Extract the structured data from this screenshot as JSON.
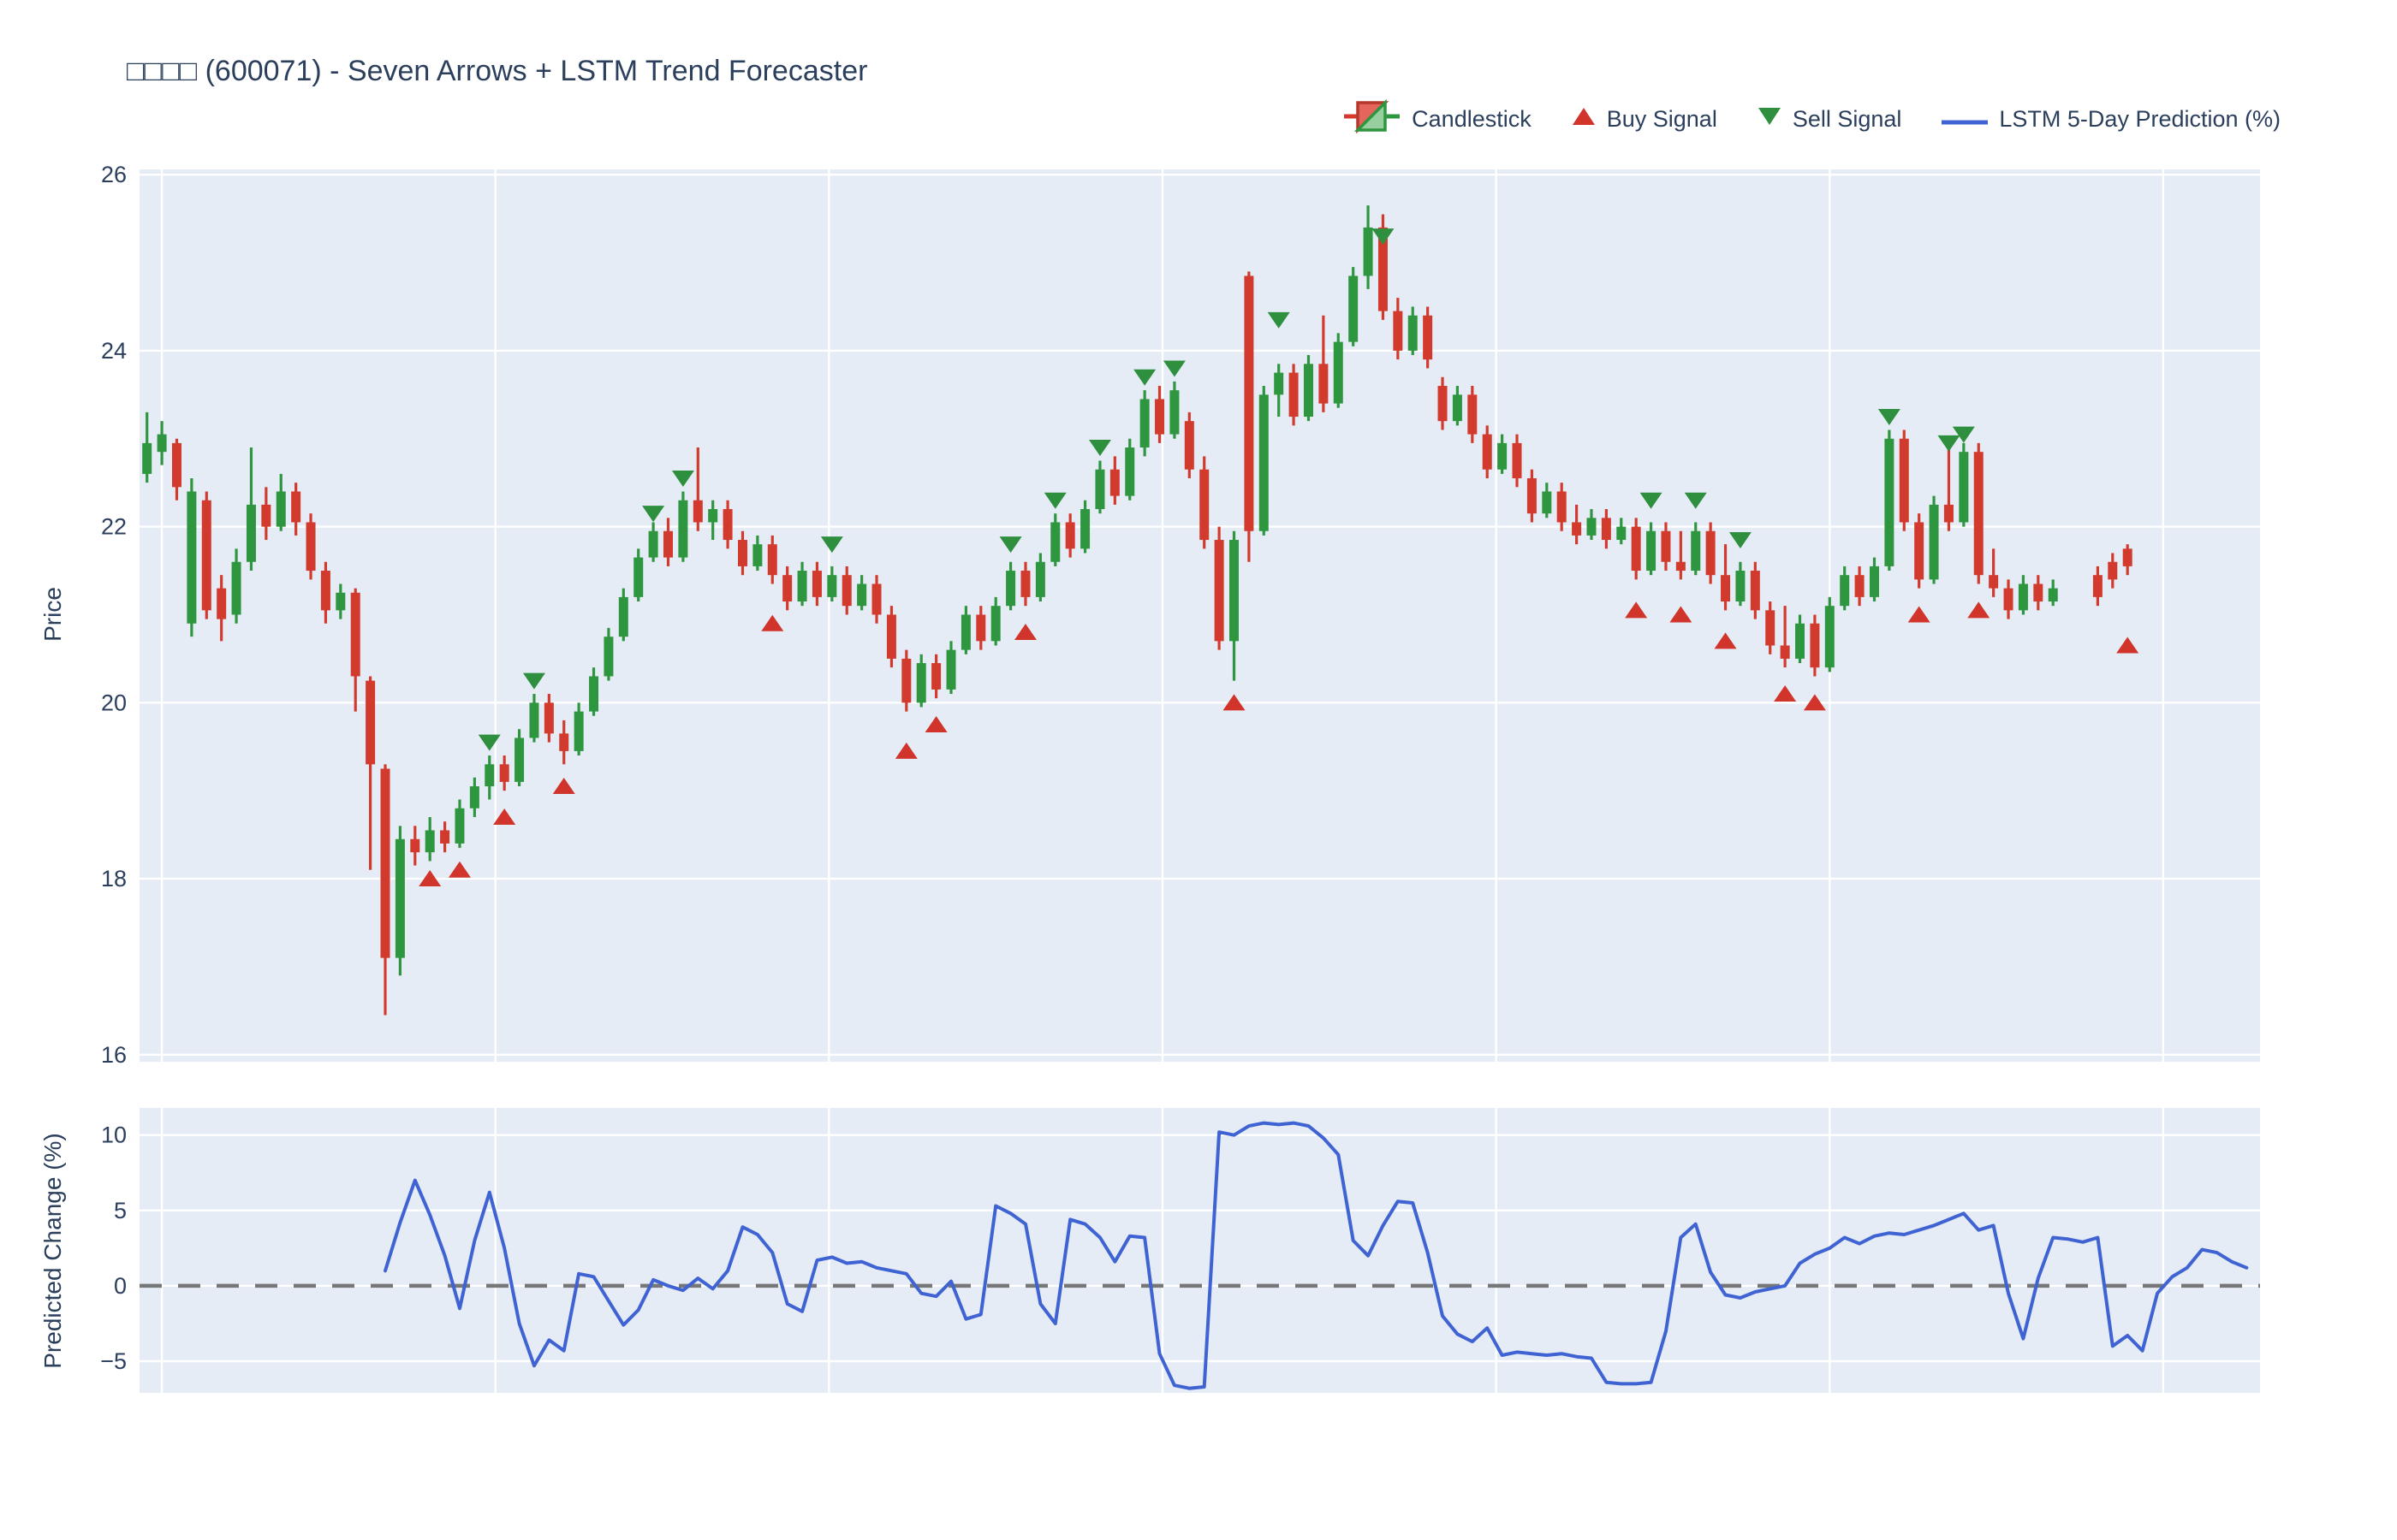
{
  "title": "□□□□ (600071) - Seven Arrows + LSTM Trend Forecaster",
  "legend": {
    "items": [
      {
        "label": "Candlestick",
        "icon": "candlestick-glyph"
      },
      {
        "label": "Buy Signal",
        "icon": "triangle-up-icon"
      },
      {
        "label": "Sell Signal",
        "icon": "triangle-down-icon"
      },
      {
        "label": "LSTM 5-Day Prediction (%)",
        "icon": "line-glyph"
      }
    ]
  },
  "colors": {
    "up": "#2f9640",
    "down": "#d23a2e",
    "buy_marker": "#d0342a",
    "sell_marker": "#2e8f3f",
    "prediction_line": "#3f63d2",
    "zero_line": "#777777",
    "plot_bg": "#e5ecf6",
    "grid": "#ffffff",
    "text": "#2b3f5c",
    "legend_candle_red_fill": "#e4655c",
    "legend_candle_red_stroke": "#b5372d",
    "legend_candle_green_fill": "#97cf9f",
    "legend_candle_green_stroke": "#2f9640"
  },
  "chart_data": {
    "type": "candlestick",
    "panels": [
      "price",
      "prediction"
    ],
    "price_panel": {
      "ylabel": "Price",
      "yticks": [
        16,
        18,
        20,
        22,
        24,
        26
      ],
      "yrange": [
        15.92,
        26.06
      ],
      "grid": true
    },
    "prediction_panel": {
      "ylabel": "Predicted Change (%)",
      "yticks": [
        -5,
        0,
        5,
        10
      ],
      "yrange": [
        -7.1,
        11.8
      ],
      "zero_line": 0,
      "grid": true
    },
    "x_axis": {
      "labels_visible": false,
      "slots": 142.4,
      "gridline_positions": [
        1,
        23.4,
        45.8,
        68.2,
        90.6,
        113,
        135.4
      ]
    },
    "candles_ohlc": [
      [
        22.6,
        23.3,
        22.5,
        22.95
      ],
      [
        22.85,
        23.2,
        22.7,
        23.05
      ],
      [
        22.95,
        23.0,
        22.3,
        22.45
      ],
      [
        20.9,
        22.55,
        20.75,
        22.4
      ],
      [
        22.3,
        22.4,
        20.95,
        21.05
      ],
      [
        21.3,
        21.45,
        20.7,
        20.95
      ],
      [
        21.0,
        21.75,
        20.9,
        21.6
      ],
      [
        21.6,
        22.9,
        21.5,
        22.25
      ],
      [
        22.25,
        22.45,
        21.85,
        22.0
      ],
      [
        22.0,
        22.6,
        21.95,
        22.4
      ],
      [
        22.4,
        22.5,
        21.9,
        22.05
      ],
      [
        22.05,
        22.15,
        21.4,
        21.5
      ],
      [
        21.5,
        21.6,
        20.9,
        21.05
      ],
      [
        21.05,
        21.35,
        20.95,
        21.25
      ],
      [
        21.25,
        21.3,
        19.9,
        20.3
      ],
      [
        20.25,
        20.3,
        18.1,
        19.3
      ],
      [
        19.25,
        19.3,
        16.45,
        17.1
      ],
      [
        17.1,
        18.6,
        16.9,
        18.45
      ],
      [
        18.45,
        18.6,
        18.15,
        18.3
      ],
      [
        18.3,
        18.7,
        18.2,
        18.55
      ],
      [
        18.55,
        18.65,
        18.3,
        18.4
      ],
      [
        18.4,
        18.9,
        18.35,
        18.8
      ],
      [
        18.8,
        19.15,
        18.7,
        19.05
      ],
      [
        19.05,
        19.4,
        18.9,
        19.3
      ],
      [
        19.3,
        19.4,
        19.0,
        19.1
      ],
      [
        19.1,
        19.7,
        19.05,
        19.6
      ],
      [
        19.6,
        20.1,
        19.55,
        20.0
      ],
      [
        20.0,
        20.1,
        19.55,
        19.65
      ],
      [
        19.65,
        19.8,
        19.3,
        19.45
      ],
      [
        19.45,
        20.0,
        19.4,
        19.9
      ],
      [
        19.9,
        20.4,
        19.85,
        20.3
      ],
      [
        20.3,
        20.85,
        20.25,
        20.75
      ],
      [
        20.75,
        21.3,
        20.7,
        21.2
      ],
      [
        21.2,
        21.75,
        21.15,
        21.65
      ],
      [
        21.65,
        22.05,
        21.6,
        21.95
      ],
      [
        21.95,
        22.1,
        21.55,
        21.65
      ],
      [
        21.65,
        22.4,
        21.6,
        22.3
      ],
      [
        22.3,
        22.9,
        21.95,
        22.05
      ],
      [
        22.05,
        22.3,
        21.85,
        22.2
      ],
      [
        22.2,
        22.3,
        21.75,
        21.85
      ],
      [
        21.85,
        21.95,
        21.45,
        21.55
      ],
      [
        21.55,
        21.9,
        21.5,
        21.8
      ],
      [
        21.8,
        21.9,
        21.35,
        21.45
      ],
      [
        21.45,
        21.55,
        21.05,
        21.15
      ],
      [
        21.15,
        21.6,
        21.1,
        21.5
      ],
      [
        21.5,
        21.6,
        21.1,
        21.2
      ],
      [
        21.2,
        21.55,
        21.15,
        21.45
      ],
      [
        21.45,
        21.55,
        21.0,
        21.1
      ],
      [
        21.1,
        21.45,
        21.05,
        21.35
      ],
      [
        21.35,
        21.45,
        20.9,
        21.0
      ],
      [
        21.0,
        21.1,
        20.4,
        20.5
      ],
      [
        20.5,
        20.6,
        19.9,
        20.0
      ],
      [
        20.0,
        20.55,
        19.95,
        20.45
      ],
      [
        20.45,
        20.55,
        20.05,
        20.15
      ],
      [
        20.15,
        20.7,
        20.1,
        20.6
      ],
      [
        20.6,
        21.1,
        20.55,
        21.0
      ],
      [
        21.0,
        21.1,
        20.6,
        20.7
      ],
      [
        20.7,
        21.2,
        20.65,
        21.1
      ],
      [
        21.1,
        21.6,
        21.05,
        21.5
      ],
      [
        21.5,
        21.6,
        21.1,
        21.2
      ],
      [
        21.2,
        21.7,
        21.15,
        21.6
      ],
      [
        21.6,
        22.15,
        21.55,
        22.05
      ],
      [
        22.05,
        22.15,
        21.65,
        21.75
      ],
      [
        21.75,
        22.3,
        21.7,
        22.2
      ],
      [
        22.2,
        22.75,
        22.15,
        22.65
      ],
      [
        22.65,
        22.8,
        22.25,
        22.35
      ],
      [
        22.35,
        23.0,
        22.3,
        22.9
      ],
      [
        22.9,
        23.55,
        22.8,
        23.45
      ],
      [
        23.45,
        23.6,
        22.95,
        23.05
      ],
      [
        23.05,
        23.65,
        23.0,
        23.55
      ],
      [
        23.2,
        23.3,
        22.55,
        22.65
      ],
      [
        22.65,
        22.8,
        21.75,
        21.85
      ],
      [
        21.85,
        22.0,
        20.6,
        20.7
      ],
      [
        20.7,
        21.95,
        20.25,
        21.85
      ],
      [
        24.85,
        24.9,
        21.6,
        21.95
      ],
      [
        21.95,
        23.6,
        21.9,
        23.5
      ],
      [
        23.5,
        23.85,
        23.25,
        23.75
      ],
      [
        23.75,
        23.85,
        23.15,
        23.25
      ],
      [
        23.25,
        23.95,
        23.2,
        23.85
      ],
      [
        23.85,
        24.4,
        23.3,
        23.4
      ],
      [
        23.4,
        24.2,
        23.35,
        24.1
      ],
      [
        24.1,
        24.95,
        24.05,
        24.85
      ],
      [
        24.85,
        25.65,
        24.7,
        25.4
      ],
      [
        25.4,
        25.55,
        24.35,
        24.45
      ],
      [
        24.45,
        24.6,
        23.9,
        24.0
      ],
      [
        24.0,
        24.5,
        23.95,
        24.4
      ],
      [
        24.4,
        24.5,
        23.8,
        23.9
      ],
      [
        23.6,
        23.7,
        23.1,
        23.2
      ],
      [
        23.2,
        23.6,
        23.15,
        23.5
      ],
      [
        23.5,
        23.6,
        22.95,
        23.05
      ],
      [
        23.05,
        23.15,
        22.55,
        22.65
      ],
      [
        22.65,
        23.05,
        22.6,
        22.95
      ],
      [
        22.95,
        23.05,
        22.45,
        22.55
      ],
      [
        22.55,
        22.65,
        22.05,
        22.15
      ],
      [
        22.15,
        22.5,
        22.1,
        22.4
      ],
      [
        22.4,
        22.5,
        21.95,
        22.05
      ],
      [
        22.05,
        22.25,
        21.8,
        21.9
      ],
      [
        21.9,
        22.2,
        21.85,
        22.1
      ],
      [
        22.1,
        22.2,
        21.75,
        21.85
      ],
      [
        21.85,
        22.1,
        21.8,
        22.0
      ],
      [
        22.0,
        22.1,
        21.4,
        21.5
      ],
      [
        21.5,
        22.05,
        21.45,
        21.95
      ],
      [
        21.95,
        22.05,
        21.5,
        21.6
      ],
      [
        21.6,
        21.95,
        21.4,
        21.5
      ],
      [
        21.5,
        22.05,
        21.45,
        21.95
      ],
      [
        21.95,
        22.05,
        21.35,
        21.45
      ],
      [
        21.45,
        21.8,
        21.05,
        21.15
      ],
      [
        21.15,
        21.6,
        21.1,
        21.5
      ],
      [
        21.5,
        21.6,
        20.95,
        21.05
      ],
      [
        21.05,
        21.15,
        20.55,
        20.65
      ],
      [
        20.65,
        21.1,
        20.4,
        20.5
      ],
      [
        20.5,
        21.0,
        20.45,
        20.9
      ],
      [
        20.9,
        21.0,
        20.3,
        20.4
      ],
      [
        20.4,
        21.2,
        20.35,
        21.1
      ],
      [
        21.1,
        21.55,
        21.05,
        21.45
      ],
      [
        21.45,
        21.55,
        21.1,
        21.2
      ],
      [
        21.2,
        21.65,
        21.15,
        21.55
      ],
      [
        21.55,
        23.1,
        21.5,
        23.0
      ],
      [
        23.0,
        23.1,
        21.95,
        22.05
      ],
      [
        22.05,
        22.15,
        21.3,
        21.4
      ],
      [
        21.4,
        22.35,
        21.35,
        22.25
      ],
      [
        22.25,
        22.9,
        21.95,
        22.05
      ],
      [
        22.05,
        22.95,
        22.0,
        22.85
      ],
      [
        22.85,
        22.95,
        21.35,
        21.45
      ],
      [
        21.45,
        21.75,
        21.2,
        21.3
      ],
      [
        21.3,
        21.4,
        20.95,
        21.05
      ],
      [
        21.05,
        21.45,
        21.0,
        21.35
      ],
      [
        21.35,
        21.45,
        21.05,
        21.15
      ],
      [
        21.15,
        21.4,
        21.1,
        21.3
      ],
      null,
      null,
      [
        21.45,
        21.55,
        21.1,
        21.2
      ],
      [
        21.6,
        21.7,
        21.3,
        21.4
      ],
      [
        21.75,
        21.8,
        21.45,
        21.55
      ]
    ],
    "buy_signals": [
      [
        19,
        18.0
      ],
      [
        21,
        18.1
      ],
      [
        24,
        18.7
      ],
      [
        28,
        19.05
      ],
      [
        42,
        20.9
      ],
      [
        51,
        19.45
      ],
      [
        53,
        19.75
      ],
      [
        59,
        20.8
      ],
      [
        73,
        20.0
      ],
      [
        100,
        21.05
      ],
      [
        103,
        21.0
      ],
      [
        106,
        20.7
      ],
      [
        110,
        20.1
      ],
      [
        112,
        20.0
      ],
      [
        119,
        21.0
      ],
      [
        123,
        21.05
      ],
      [
        133,
        20.65
      ]
    ],
    "sell_signals": [
      [
        23,
        19.55
      ],
      [
        26,
        20.25
      ],
      [
        34,
        22.15
      ],
      [
        36,
        22.55
      ],
      [
        46,
        21.8
      ],
      [
        58,
        21.8
      ],
      [
        61,
        22.3
      ],
      [
        64,
        22.9
      ],
      [
        67,
        23.7
      ],
      [
        69,
        23.8
      ],
      [
        76,
        24.35
      ],
      [
        83,
        25.3
      ],
      [
        101,
        22.3
      ],
      [
        104,
        22.3
      ],
      [
        107,
        21.85
      ],
      [
        117,
        23.25
      ],
      [
        121,
        22.95
      ],
      [
        122,
        23.05
      ]
    ],
    "lstm_prediction": {
      "start_index": 16,
      "values": [
        1.0,
        4.2,
        7.0,
        4.7,
        2.0,
        -1.5,
        3.0,
        6.2,
        2.5,
        -2.5,
        -5.3,
        -3.6,
        -4.3,
        0.8,
        0.6,
        -1.0,
        -2.6,
        -1.6,
        0.4,
        0.0,
        -0.3,
        0.5,
        -0.2,
        1.0,
        3.9,
        3.4,
        2.2,
        -1.2,
        -1.7,
        1.7,
        1.9,
        1.5,
        1.6,
        1.2,
        1.0,
        0.8,
        -0.5,
        -0.7,
        0.3,
        -2.2,
        -1.9,
        5.3,
        4.8,
        4.1,
        -1.2,
        -2.5,
        4.4,
        4.1,
        3.2,
        1.6,
        3.3,
        3.2,
        -4.5,
        -6.6,
        -6.8,
        -6.7,
        10.2,
        10.0,
        10.6,
        10.8,
        10.7,
        10.8,
        10.6,
        9.8,
        8.7,
        3.0,
        2.0,
        4.0,
        5.6,
        5.5,
        2.2,
        -2.0,
        -3.2,
        -3.7,
        -2.8,
        -4.6,
        -4.4,
        -4.5,
        -4.6,
        -4.5,
        -4.7,
        -4.8,
        -6.4,
        -6.5,
        -6.5,
        -6.4,
        -3.0,
        3.2,
        4.1,
        0.9,
        -0.6,
        -0.8,
        -0.4,
        -0.2,
        0.0,
        1.5,
        2.1,
        2.5,
        3.2,
        2.8,
        3.3,
        3.5,
        3.4,
        3.7,
        4.0,
        4.4,
        4.8,
        3.7,
        4.0,
        -0.5,
        -3.5,
        0.5,
        3.2,
        3.1,
        2.9,
        3.2,
        -4.0,
        -3.3,
        -4.3,
        -0.5,
        0.6,
        1.2,
        2.4,
        2.2,
        1.6,
        1.2
      ]
    }
  }
}
